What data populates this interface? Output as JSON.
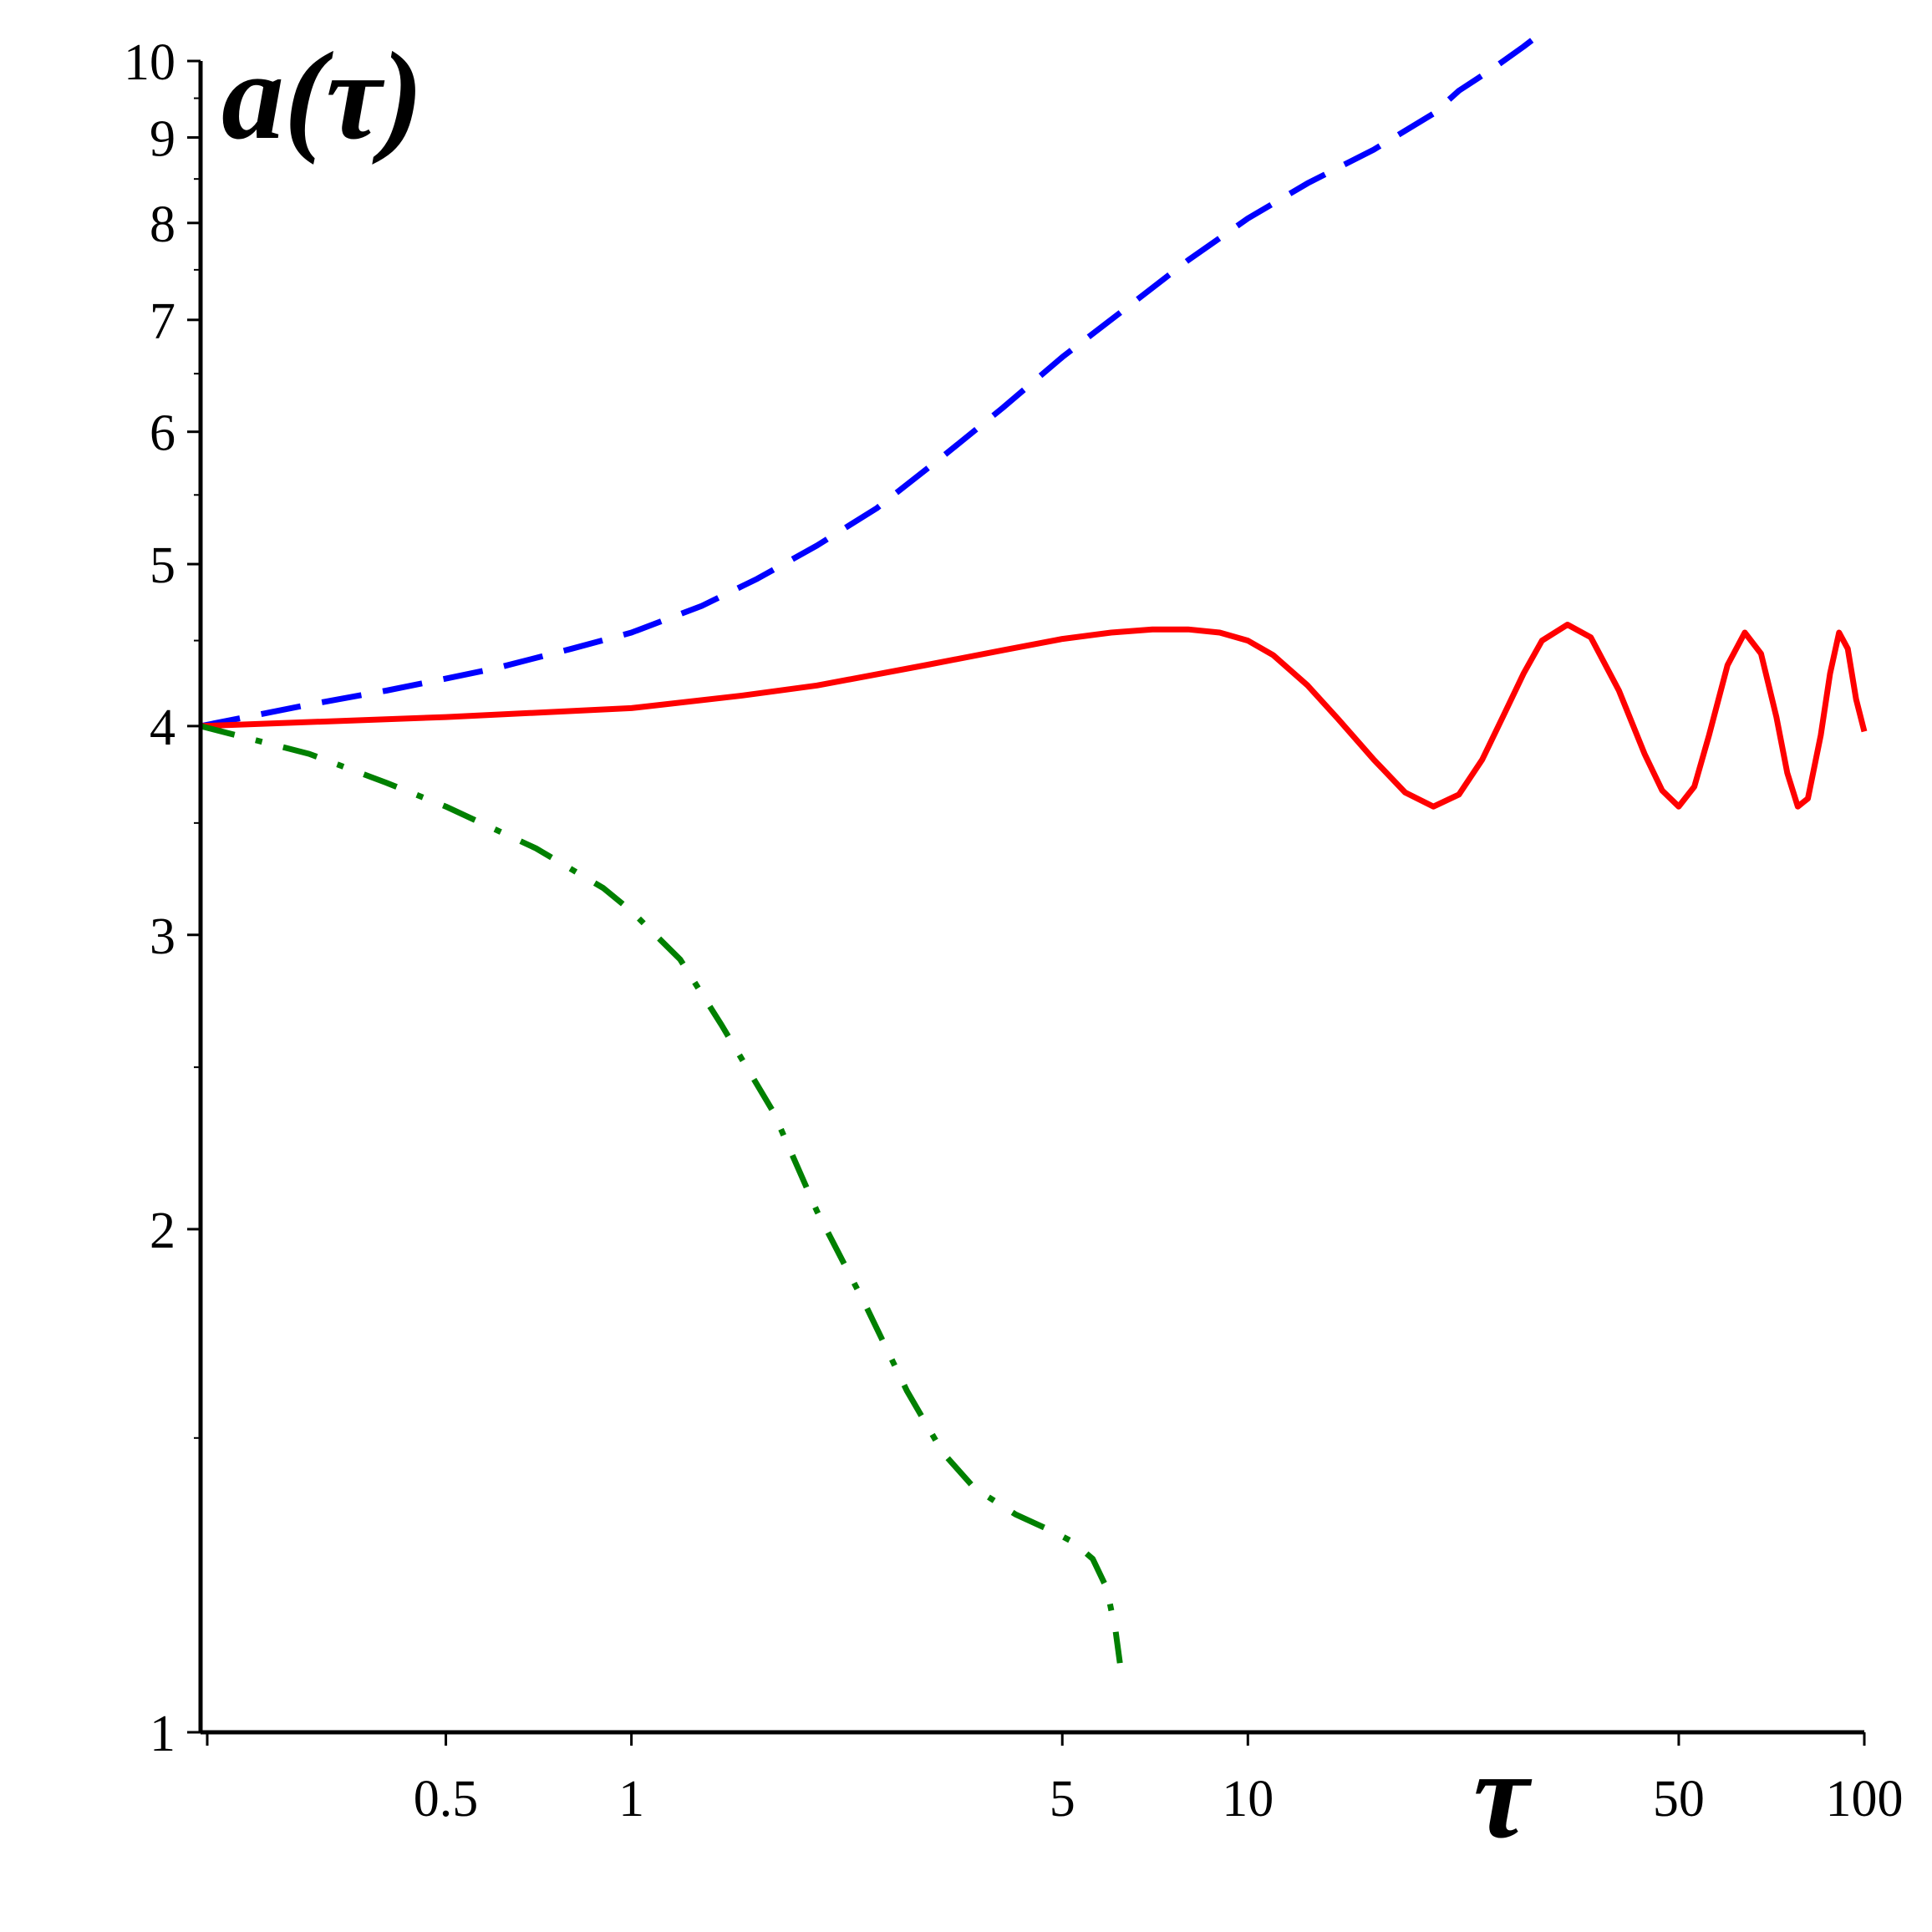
{
  "chart_data": {
    "type": "line",
    "title": "",
    "xlabel": "τ",
    "ylabel": "a(τ)",
    "xscale": "log",
    "yscale": "log",
    "xlim": [
      0.2,
      100
    ],
    "ylim": [
      1,
      10
    ],
    "grid": false,
    "legend": "none",
    "x_ticks": [
      {
        "value": 0.5,
        "label": "0.5"
      },
      {
        "value": 1,
        "label": "1"
      },
      {
        "value": 5,
        "label": "5"
      },
      {
        "value": 10,
        "label": "10"
      },
      {
        "value": 50,
        "label": "50"
      },
      {
        "value": 100,
        "label": "100"
      }
    ],
    "y_ticks": [
      {
        "value": 1,
        "label": "1"
      },
      {
        "value": 2,
        "label": "2"
      },
      {
        "value": 3,
        "label": "3"
      },
      {
        "value": 4,
        "label": "4"
      },
      {
        "value": 5,
        "label": "5"
      },
      {
        "value": 6,
        "label": "6"
      },
      {
        "value": 7,
        "label": "7"
      },
      {
        "value": 8,
        "label": "8"
      },
      {
        "value": 9,
        "label": "9"
      },
      {
        "value": 10,
        "label": "10"
      }
    ],
    "series": [
      {
        "color": "#0000ff",
        "style": "dashed",
        "x": [
          0.2,
          0.3,
          0.4,
          0.5,
          0.6,
          0.8,
          1.0,
          1.3,
          1.6,
          2.0,
          2.5,
          3.2,
          4.0,
          5.0,
          6.3,
          8.0,
          10.0,
          12.5,
          16.0,
          20.0,
          22.0,
          25.0,
          28.0,
          30.0
        ],
        "y": [
          4.0,
          4.12,
          4.2,
          4.27,
          4.33,
          4.45,
          4.55,
          4.72,
          4.9,
          5.13,
          5.4,
          5.8,
          6.2,
          6.65,
          7.1,
          7.6,
          8.05,
          8.45,
          8.85,
          9.3,
          9.6,
          9.9,
          10.2,
          10.4
        ]
      },
      {
        "color": "#ff0000",
        "style": "solid",
        "x": [
          0.2,
          0.5,
          1.0,
          1.5,
          2.0,
          3.0,
          4.0,
          5.0,
          6.0,
          7.0,
          8.0,
          9.0,
          10.0,
          11.0,
          12.5,
          14.0,
          16.0,
          18.0,
          20.0,
          22.0,
          24.0,
          26.0,
          28.0,
          30.0,
          33.0,
          36.0,
          40.0,
          44.0,
          47.0,
          50.0,
          53.0,
          56.0,
          60.0,
          64.0,
          68.0,
          72.0,
          75.0,
          78.0,
          81.0,
          85.0,
          88.0,
          91.0,
          94.0,
          97.0,
          100.0
        ],
        "y": [
          4.0,
          4.05,
          4.1,
          4.17,
          4.23,
          4.35,
          4.44,
          4.51,
          4.55,
          4.57,
          4.57,
          4.55,
          4.5,
          4.41,
          4.23,
          4.04,
          3.82,
          3.65,
          3.58,
          3.64,
          3.82,
          4.06,
          4.3,
          4.5,
          4.6,
          4.52,
          4.2,
          3.85,
          3.66,
          3.58,
          3.68,
          3.95,
          4.35,
          4.55,
          4.42,
          4.05,
          3.75,
          3.58,
          3.62,
          3.95,
          4.3,
          4.55,
          4.45,
          4.15,
          3.97
        ]
      },
      {
        "color": "#008000",
        "style": "dashdot",
        "x": [
          0.2,
          0.3,
          0.4,
          0.5,
          0.7,
          0.9,
          1.0,
          1.2,
          1.4,
          1.7,
          2.0,
          2.4,
          2.8,
          3.2,
          3.6,
          4.2,
          4.8,
          5.2,
          5.6,
          5.9,
          6.1,
          6.2
        ],
        "y": [
          4.0,
          3.85,
          3.7,
          3.58,
          3.38,
          3.2,
          3.1,
          2.9,
          2.65,
          2.35,
          2.05,
          1.8,
          1.6,
          1.47,
          1.4,
          1.35,
          1.32,
          1.3,
          1.27,
          1.22,
          1.15,
          1.1
        ]
      }
    ]
  }
}
